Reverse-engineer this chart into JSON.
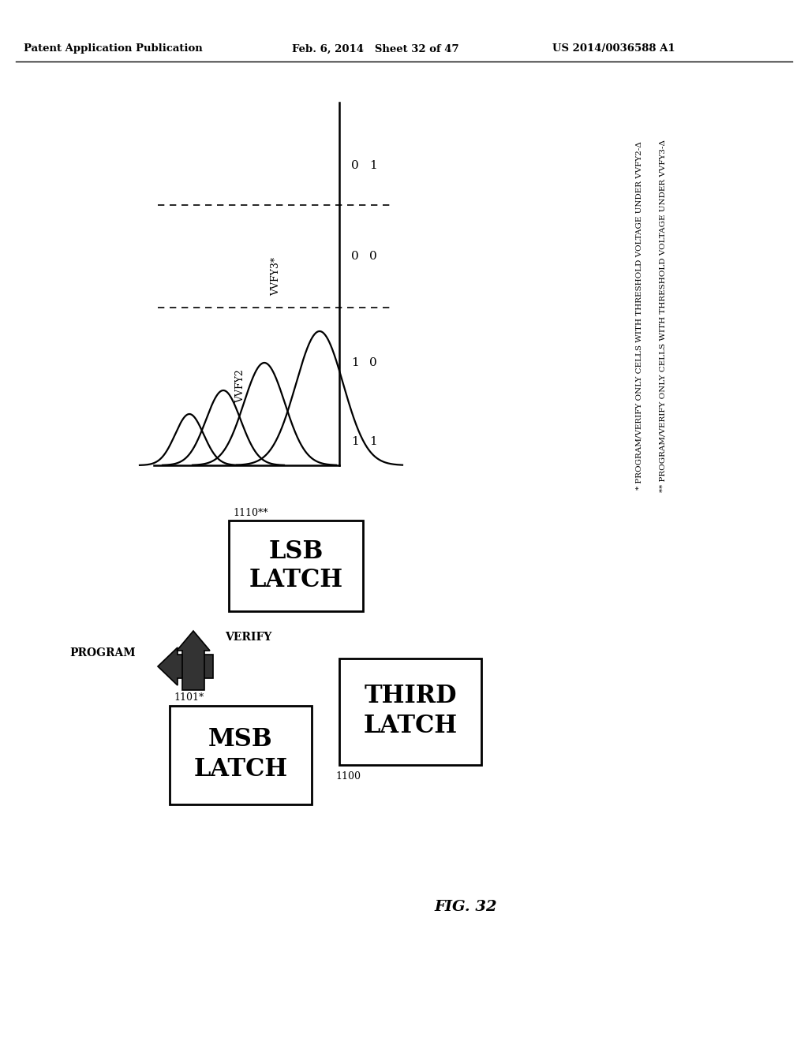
{
  "bg_color": "#ffffff",
  "header_left": "Patent Application Publication",
  "header_center": "Feb. 6, 2014   Sheet 32 of 47",
  "header_right": "US 2014/0036588 A1",
  "fig_label": "FIG. 32",
  "note1": "* PROGRAM/VERIFY ONLY CELLS WITH THRESHOLD VOLTAGE UNDER VVFY2-Δ",
  "note2": "** PROGRAM/VERIFY ONLY CELLS WITH THRESHOLD VOLTAGE UNDER VVFY3-Δ",
  "latch_msb_num": "1101*",
  "latch_lsb_num": "1110**",
  "latch_third_num": "1100",
  "program_label": "PROGRAM",
  "verify_label": "VERIFY",
  "vvfy2_label": "VVFY2",
  "vvfy3_label": "VVFY3*"
}
